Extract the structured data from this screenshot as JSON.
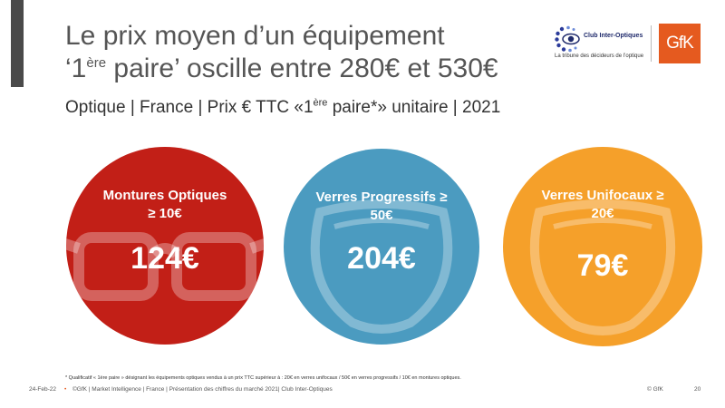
{
  "header": {
    "title_line1": "Le prix moyen d’un équipement",
    "title_line2_pre": "‘1",
    "title_line2_sup": "ère",
    "title_line2_post": " paire’ oscille entre 280€ et 530€",
    "subtitle_pre": "Optique | France | Prix € TTC «1",
    "subtitle_sup": "ère",
    "subtitle_post": " paire*» unitaire | 2021"
  },
  "logos": {
    "club_name": "Club Inter-Optiques",
    "club_tagline": "La tribune des décideurs de l’optique",
    "gfk": "GfK",
    "gfk_color": "#e55a1f"
  },
  "circles": [
    {
      "label_line1": "Montures Optiques",
      "label_line2": "≥ 10€",
      "value": "124€",
      "color": "#c21f17",
      "icon": "glasses-frame-icon"
    },
    {
      "label_line1": "Verres Progressifs ≥",
      "label_line2": "50€",
      "value": "204€",
      "color": "#4b9bc0",
      "icon": "lens-icon"
    },
    {
      "label_line1": "Verres Unifocaux ≥",
      "label_line2": "20€",
      "value": "79€",
      "color": "#f5a02a",
      "icon": "lens-icon"
    }
  ],
  "footnote": "* Qualificatif « 1ère paire » désignant les équipements optiques vendus à un prix TTC supérieur à : 20€ en verres unifocaux  / 50€ en verres progressifs / 10€ en montures optiques.",
  "footer": {
    "date": "24-Feb-22",
    "bullet": "•",
    "source": "©GfK | Market Intelligence | France | Présentation des chiffres du marché 2021| Club Inter-Optiques",
    "copyright": "© GfK",
    "page": "20"
  }
}
